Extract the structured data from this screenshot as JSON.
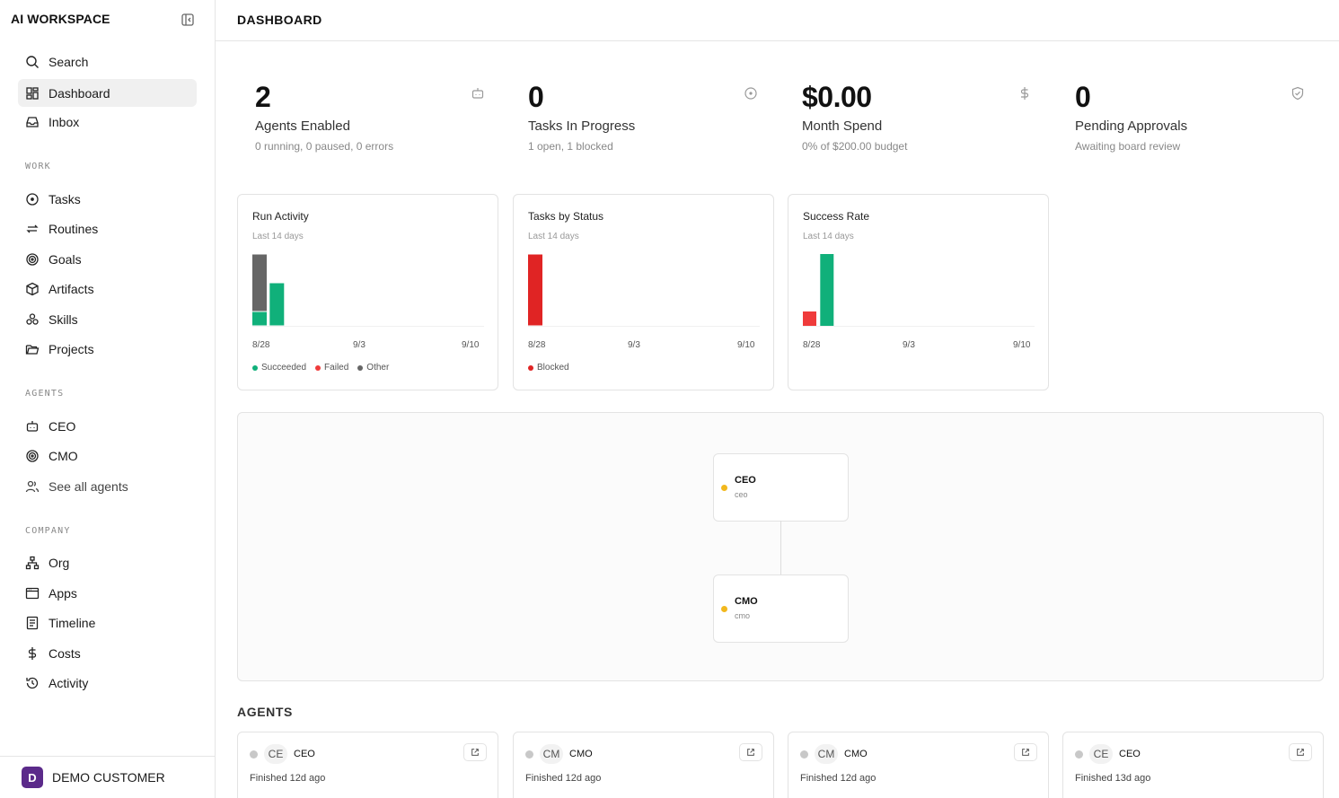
{
  "sidebar": {
    "brand": "AI WORKSPACE",
    "items_top": [
      {
        "label": "Search",
        "icon": "search-icon"
      },
      {
        "label": "Dashboard",
        "icon": "dashboard-icon",
        "active": true
      },
      {
        "label": "Inbox",
        "icon": "inbox-icon"
      }
    ],
    "work_label": "WORK",
    "work_items": [
      {
        "label": "Tasks",
        "icon": "circle-dot-icon"
      },
      {
        "label": "Routines",
        "icon": "repeat-icon"
      },
      {
        "label": "Goals",
        "icon": "target-icon"
      },
      {
        "label": "Artifacts",
        "icon": "box-icon"
      },
      {
        "label": "Skills",
        "icon": "skills-icon"
      },
      {
        "label": "Projects",
        "icon": "folder-icon"
      }
    ],
    "agents_label": "AGENTS",
    "agent_items": [
      {
        "label": "CEO",
        "icon": "bot-icon"
      },
      {
        "label": "CMO",
        "icon": "target-icon"
      },
      {
        "label": "See all agents",
        "icon": "users-icon"
      }
    ],
    "company_label": "COMPANY",
    "company_items": [
      {
        "label": "Org",
        "icon": "org-icon"
      },
      {
        "label": "Apps",
        "icon": "apps-icon"
      },
      {
        "label": "Timeline",
        "icon": "timeline-icon"
      },
      {
        "label": "Costs",
        "icon": "dollar-icon"
      },
      {
        "label": "Activity",
        "icon": "history-icon"
      }
    ],
    "company": {
      "initial": "D",
      "name": "DEMO CUSTOMER",
      "color": "#5b2a8a"
    }
  },
  "header": {
    "title": "DASHBOARD"
  },
  "metrics": [
    {
      "value": "2",
      "label": "Agents Enabled",
      "sub": "0 running, 0 paused, 0 errors",
      "icon": "bot-icon"
    },
    {
      "value": "0",
      "label": "Tasks In Progress",
      "sub": "1 open, 1 blocked",
      "icon": "circle-dot-icon"
    },
    {
      "value": "$0.00",
      "label": "Month Spend",
      "sub": "0% of $200.00 budget",
      "icon": "dollar-icon"
    },
    {
      "value": "0",
      "label": "Pending Approvals",
      "sub": "Awaiting board review",
      "icon": "shield-check-icon"
    }
  ],
  "colors": {
    "succeeded": "#10b07a",
    "failed": "#ef3b3b",
    "other": "#666666",
    "blocked": "#e02424",
    "agent_idle": "#f2b81e"
  },
  "chart_data": [
    {
      "type": "bar",
      "title": "Run Activity",
      "subtitle": "Last 14 days",
      "x_ticks": [
        "8/28",
        "9/3",
        "9/10"
      ],
      "categories": [
        "8/28",
        "8/29"
      ],
      "stacked": true,
      "series": [
        {
          "name": "Succeeded",
          "values": [
            1,
            3
          ]
        },
        {
          "name": "Failed",
          "values": [
            0,
            0
          ]
        },
        {
          "name": "Other",
          "values": [
            4,
            0
          ]
        }
      ],
      "legend": [
        "Succeeded",
        "Failed",
        "Other"
      ]
    },
    {
      "type": "bar",
      "title": "Tasks by Status",
      "subtitle": "Last 14 days",
      "x_ticks": [
        "8/28",
        "9/3",
        "9/10"
      ],
      "categories": [
        "8/28"
      ],
      "stacked": true,
      "series": [
        {
          "name": "Blocked",
          "values": [
            1
          ]
        }
      ],
      "legend": [
        "Blocked"
      ]
    },
    {
      "type": "bar",
      "title": "Success Rate",
      "subtitle": "Last 14 days",
      "x_ticks": [
        "8/28",
        "9/3",
        "9/10"
      ],
      "categories": [
        "8/28",
        "8/29"
      ],
      "series": [
        {
          "values": [
            20,
            100
          ]
        }
      ],
      "legend": []
    }
  ],
  "org": [
    {
      "name": "CEO",
      "role": "ceo"
    },
    {
      "name": "CMO",
      "role": "cmo"
    }
  ],
  "agents_heading": "AGENTS",
  "agents": [
    {
      "initials": "CE",
      "name": "CEO",
      "finished": "Finished 12d ago"
    },
    {
      "initials": "CM",
      "name": "CMO",
      "finished": "Finished 12d ago"
    },
    {
      "initials": "CM",
      "name": "CMO",
      "finished": "Finished 12d ago"
    },
    {
      "initials": "CE",
      "name": "CEO",
      "finished": "Finished 13d ago"
    }
  ]
}
